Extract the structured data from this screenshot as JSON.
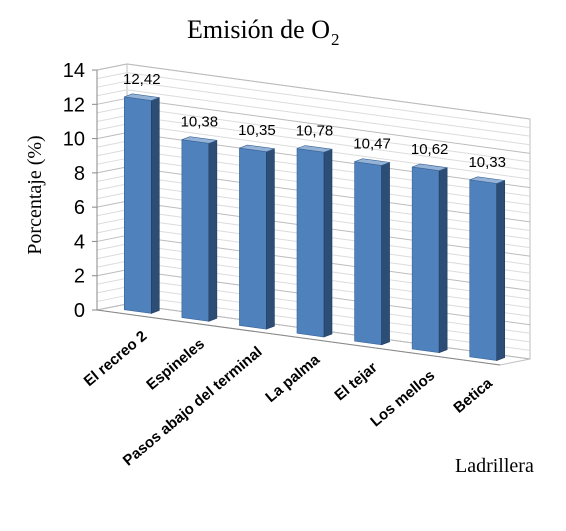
{
  "chart_data": {
    "type": "bar",
    "title": "Emisión de O",
    "title_subscript": "2",
    "xlabel": "Ladrillera",
    "ylabel": "Porcentaje  (%)",
    "categories": [
      "El recreo 2",
      "Espineles",
      "Pasos abajo del terminal",
      "La palma",
      "El tejar",
      "Los mellos",
      "Betica"
    ],
    "values": [
      12.42,
      10.38,
      10.35,
      10.78,
      10.47,
      10.62,
      10.33
    ],
    "data_labels": [
      "12,42",
      "10,38",
      "10,35",
      "10,78",
      "10,47",
      "10,62",
      "10,33"
    ],
    "yticks": [
      "0",
      "2",
      "4",
      "6",
      "8",
      "10",
      "12",
      "14"
    ],
    "ylim": [
      0,
      14
    ],
    "grid": true,
    "bar_color": "#4f81bd",
    "bar_shade_color": "#2c4d75",
    "bar_top_color": "#95b3d7"
  }
}
